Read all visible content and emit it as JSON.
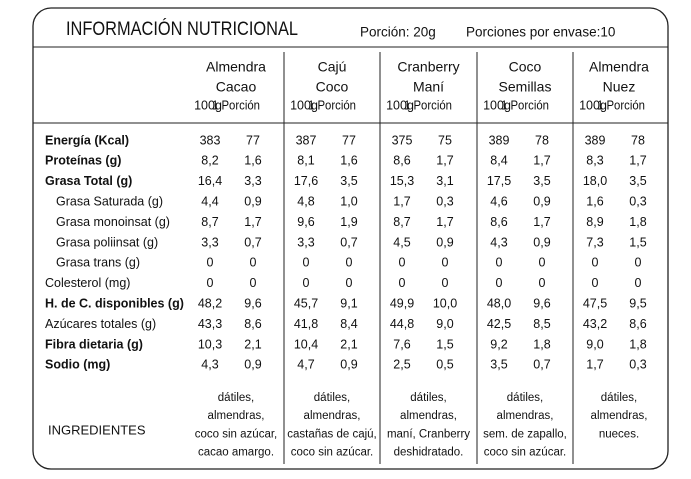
{
  "header": {
    "title": "INFORMACIÓN NUTRICIONAL",
    "portion": "Porción: 20g",
    "servings": "Porciones por envase:10"
  },
  "products": [
    {
      "name": [
        "Almendra",
        "Cacao"
      ],
      "units": [
        "100g",
        "1 Porción"
      ],
      "ingredients": [
        "dátiles,",
        "almendras,",
        "coco sin azúcar,",
        "cacao amargo."
      ]
    },
    {
      "name": [
        "Cajú",
        "Coco"
      ],
      "units": [
        "100g",
        "1 Porción"
      ],
      "ingredients": [
        "dátiles,",
        "almendras,",
        "castañas de cajú,",
        "coco sin azúcar."
      ]
    },
    {
      "name": [
        "Cranberry",
        "Maní"
      ],
      "units": [
        "100g",
        "1 Porción"
      ],
      "ingredients": [
        "dátiles,",
        "almendras,",
        "maní, Cranberry",
        "deshidratado."
      ]
    },
    {
      "name": [
        "Coco",
        "Semillas"
      ],
      "units": [
        "100g",
        "1 Porción"
      ],
      "ingredients": [
        "dátiles,",
        "almendras,",
        "sem. de zapallo,",
        "coco sin azúcar."
      ]
    },
    {
      "name": [
        "Almendra",
        "Nuez"
      ],
      "units": [
        "100g",
        "1 Porción"
      ],
      "ingredients": [
        "dátiles,",
        "almendras,",
        "nueces."
      ]
    }
  ],
  "rows": [
    {
      "label": "Energía (Kcal)",
      "style": "bold",
      "values": [
        "383",
        "77",
        "387",
        "77",
        "375",
        "75",
        "389",
        "78",
        "389",
        "78"
      ]
    },
    {
      "label": "Proteínas (g)",
      "style": "bold",
      "values": [
        "8,2",
        "1,6",
        "8,1",
        "1,6",
        "8,6",
        "1,7",
        "8,4",
        "1,7",
        "8,3",
        "1,7"
      ]
    },
    {
      "label": "Grasa Total (g)",
      "style": "bold",
      "values": [
        "16,4",
        "3,3",
        "17,6",
        "3,5",
        "15,3",
        "3,1",
        "17,5",
        "3,5",
        "18,0",
        "3,5"
      ]
    },
    {
      "label": "Grasa Saturada (g)",
      "style": "indent",
      "values": [
        "4,4",
        "0,9",
        "4,8",
        "1,0",
        "1,7",
        "0,3",
        "4,6",
        "0,9",
        "1,6",
        "0,3"
      ]
    },
    {
      "label": "Grasa monoinsat (g)",
      "style": "indent",
      "values": [
        "8,7",
        "1,7",
        "9,6",
        "1,9",
        "8,7",
        "1,7",
        "8,6",
        "1,7",
        "8,9",
        "1,8"
      ]
    },
    {
      "label": "Grasa poliinsat (g)",
      "style": "indent",
      "values": [
        "3,3",
        "0,7",
        "3,3",
        "0,7",
        "4,5",
        "0,9",
        "4,3",
        "0,9",
        "7,3",
        "1,5"
      ]
    },
    {
      "label": "Grasa trans (g)",
      "style": "indent",
      "values": [
        "0",
        "0",
        "0",
        "0",
        "0",
        "0",
        "0",
        "0",
        "0",
        "0"
      ]
    },
    {
      "label": "Colesterol (mg)",
      "style": "normal",
      "values": [
        "0",
        "0",
        "0",
        "0",
        "0",
        "0",
        "0",
        "0",
        "0",
        "0"
      ]
    },
    {
      "label": "H. de C. disponibles (g)",
      "style": "bold",
      "values": [
        "48,2",
        "9,6",
        "45,7",
        "9,1",
        "49,9",
        "10,0",
        "48,0",
        "9,6",
        "47,5",
        "9,5"
      ]
    },
    {
      "label": "Azúcares totales (g)",
      "style": "normal",
      "values": [
        "43,3",
        "8,6",
        "41,8",
        "8,4",
        "44,8",
        "9,0",
        "42,5",
        "8,5",
        "43,2",
        "8,6"
      ]
    },
    {
      "label": "Fibra dietaria (g)",
      "style": "bold",
      "values": [
        "10,3",
        "2,1",
        "10,4",
        "2,1",
        "7,6",
        "1,5",
        "9,2",
        "1,8",
        "9,0",
        "1,8"
      ]
    },
    {
      "label": "Sodio (mg)",
      "style": "bold",
      "values": [
        "4,3",
        "0,9",
        "4,7",
        "0,9",
        "2,5",
        "0,5",
        "3,5",
        "0,7",
        "1,7",
        "0,3"
      ]
    }
  ],
  "ingredients_label": "INGREDIENTES"
}
